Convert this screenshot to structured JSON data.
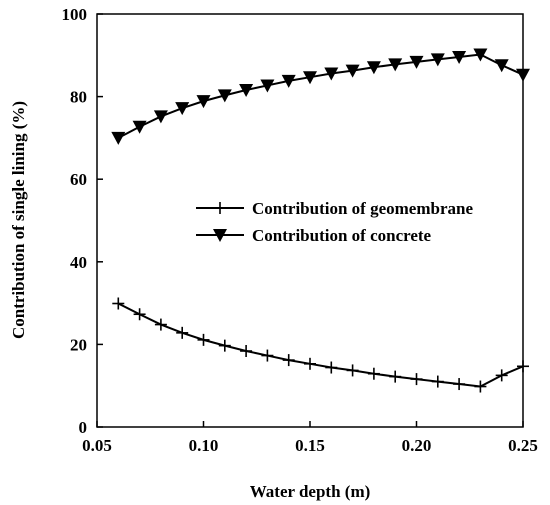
{
  "chart_data": {
    "type": "line",
    "title": "",
    "xlabel": "Water depth (m)",
    "ylabel": "Contribution of single lining (%)",
    "xlim": [
      0.05,
      0.25
    ],
    "ylim": [
      0,
      100
    ],
    "xticks": [
      0.05,
      0.1,
      0.15,
      0.2,
      0.25
    ],
    "xtick_labels": [
      "0.05",
      "0.10",
      "0.15",
      "0.20",
      "0.25"
    ],
    "yticks": [
      0,
      20,
      40,
      60,
      80,
      100
    ],
    "ytick_labels": [
      "0",
      "20",
      "40",
      "60",
      "80",
      "100"
    ],
    "grid": false,
    "legend_position": "center-right",
    "x": [
      0.06,
      0.07,
      0.08,
      0.09,
      0.1,
      0.11,
      0.12,
      0.13,
      0.14,
      0.15,
      0.16,
      0.17,
      0.18,
      0.19,
      0.2,
      0.21,
      0.22,
      0.23,
      0.24,
      0.25
    ],
    "series": [
      {
        "name": "Contribution of geomembrane",
        "marker": "plus",
        "color": "#000000",
        "values": [
          29.9,
          27.3,
          24.8,
          22.8,
          21.1,
          19.7,
          18.4,
          17.3,
          16.2,
          15.3,
          14.4,
          13.7,
          12.9,
          12.2,
          11.6,
          11.0,
          10.4,
          9.8,
          12.5,
          14.7
        ]
      },
      {
        "name": "Contribution of concrete",
        "marker": "triangle-down",
        "color": "#000000",
        "values": [
          70.0,
          72.7,
          75.2,
          77.2,
          78.9,
          80.3,
          81.6,
          82.7,
          83.8,
          84.7,
          85.6,
          86.3,
          87.1,
          87.8,
          88.4,
          89.0,
          89.6,
          90.2,
          87.6,
          85.3
        ]
      }
    ]
  }
}
